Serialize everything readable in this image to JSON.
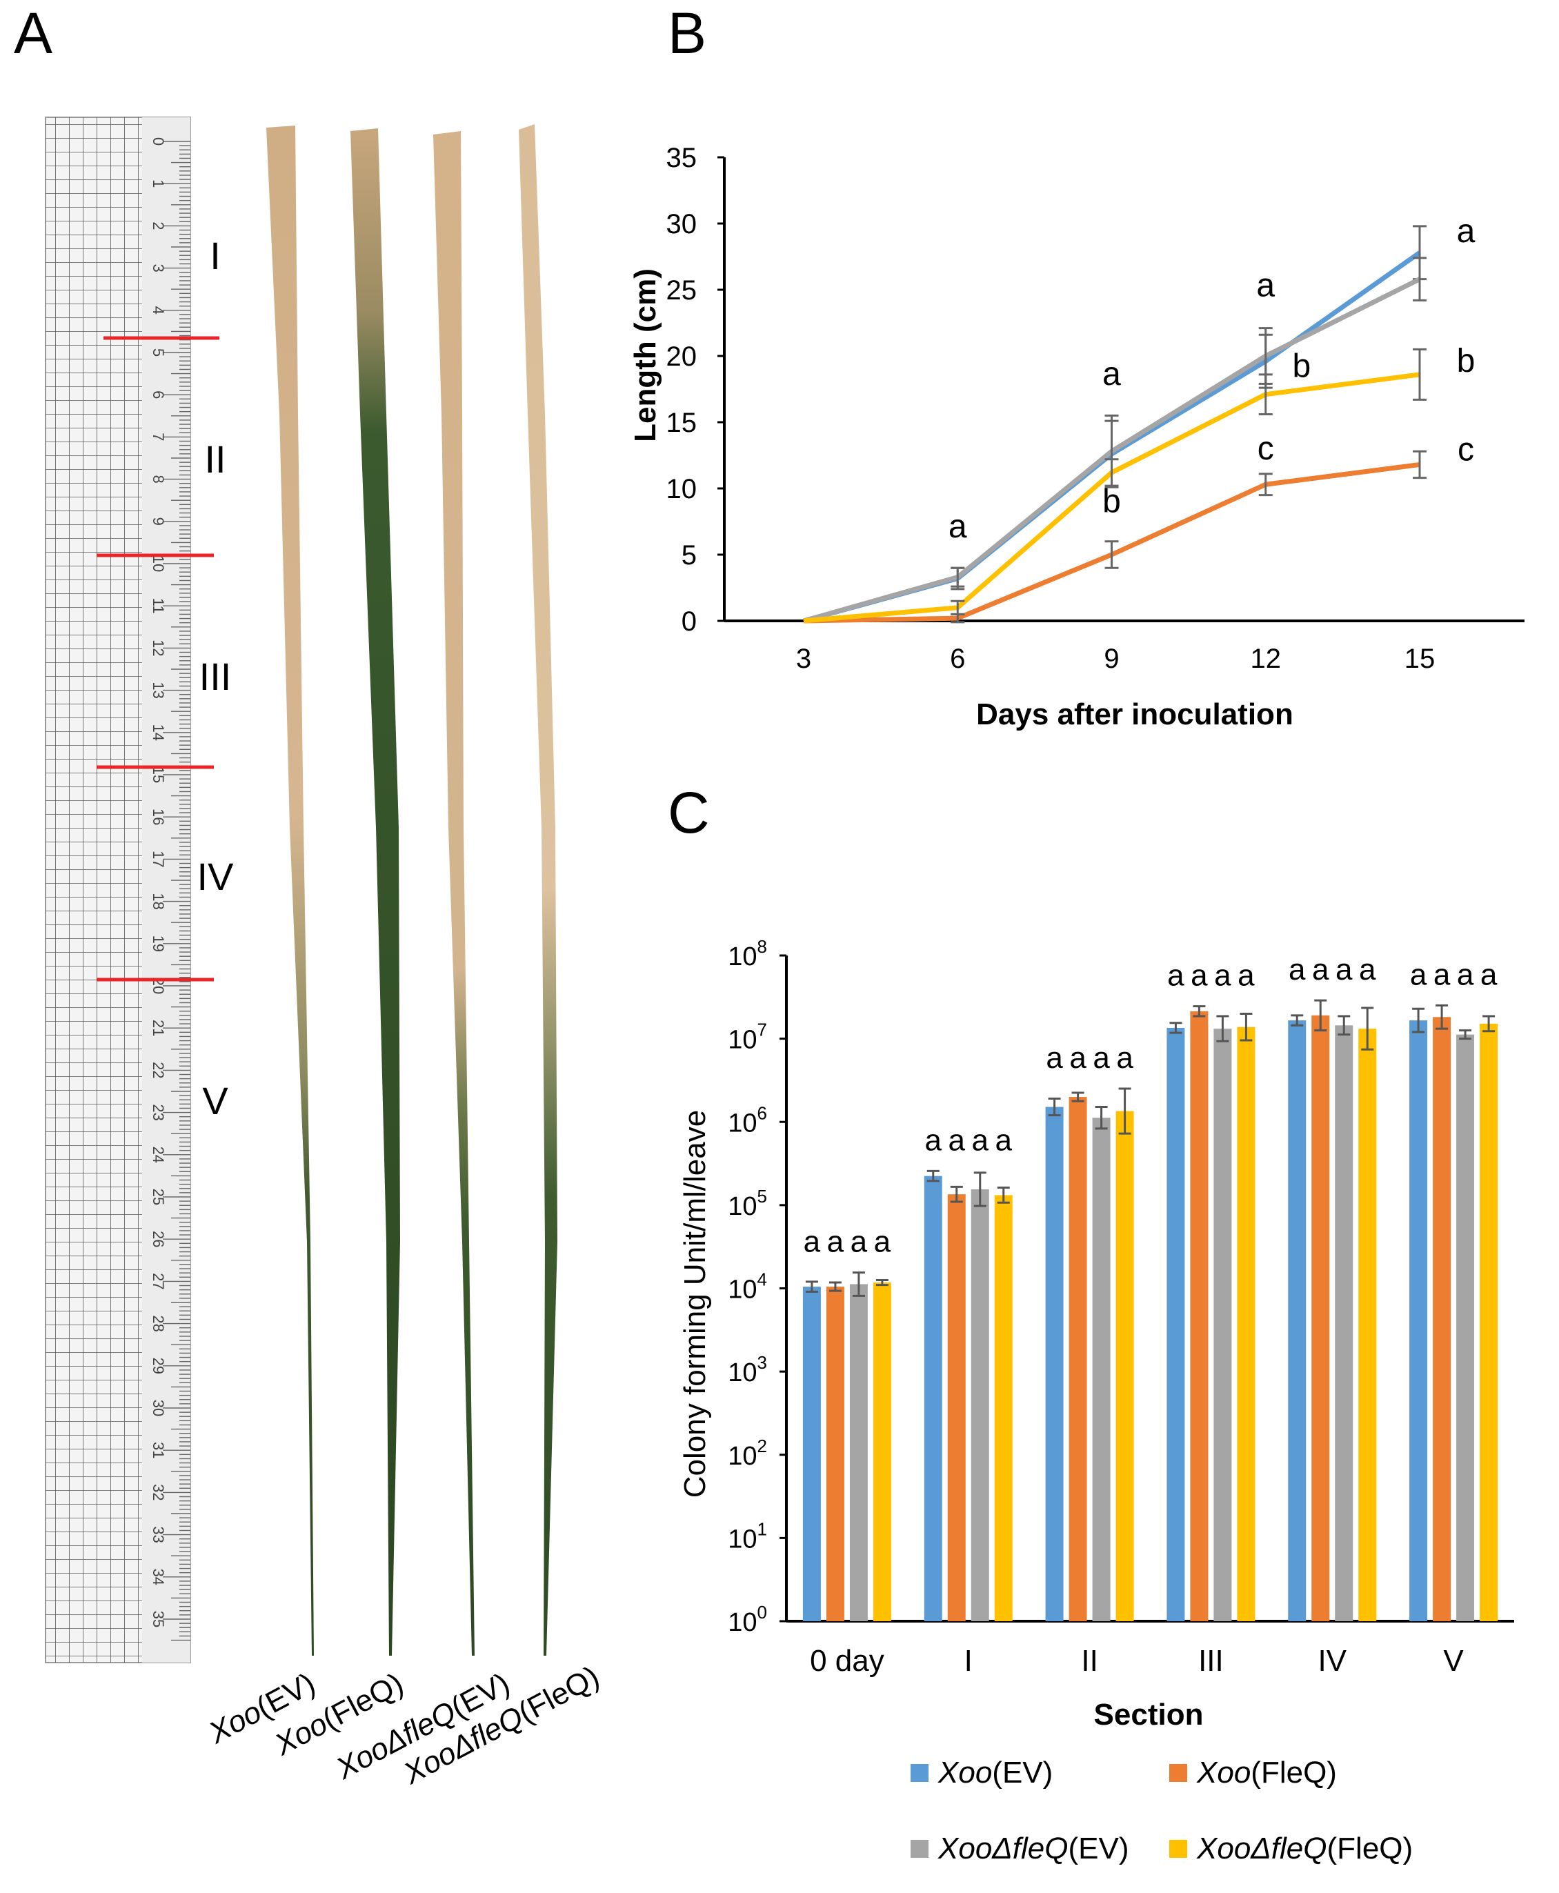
{
  "panels": {
    "a": "A",
    "b": "B",
    "c": "C"
  },
  "photo": {
    "section_labels": [
      "I",
      "II",
      "III",
      "IV",
      "V"
    ],
    "ruler_numbers": [
      "0",
      "1",
      "2",
      "3",
      "4",
      "5",
      "6",
      "7",
      "8",
      "9",
      "10",
      "11",
      "12",
      "13",
      "14",
      "15",
      "16",
      "17",
      "18",
      "19",
      "20",
      "21",
      "22",
      "23",
      "24",
      "25",
      "26",
      "27",
      "28",
      "29",
      "30",
      "31",
      "32",
      "33",
      "34",
      "35"
    ],
    "leaf_labels": [
      {
        "italic": "Xoo",
        "plain": "(EV)"
      },
      {
        "italic": "Xoo",
        "plain": "(FleQ)"
      },
      {
        "italic": "XooΔfleQ",
        "plain": "(EV)"
      },
      {
        "italic": "XooΔfleQ",
        "plain": "(FleQ)"
      }
    ]
  },
  "colors": {
    "blue": "#5B9BD5",
    "orange": "#ED7D31",
    "gray": "#A5A5A5",
    "yellow": "#FFC000",
    "marker_red": "#E8262A"
  },
  "chart_data": [
    {
      "type": "line",
      "xlabel": "Days after inoculation",
      "ylabel": "Length (cm)",
      "x": [
        3,
        6,
        9,
        12,
        15
      ],
      "ylim": [
        0,
        35
      ],
      "yticks": [
        0,
        5,
        10,
        15,
        20,
        25,
        30,
        35
      ],
      "series": [
        {
          "name": "Xoo(EV)",
          "color": "#5B9BD5",
          "values": [
            0,
            3.2,
            12.6,
            19.6,
            27.8
          ],
          "errors": [
            0,
            0.8,
            2.5,
            2.0,
            2.0
          ]
        },
        {
          "name": "Xoo(FleQ)",
          "color": "#ED7D31",
          "values": [
            0,
            0.2,
            5.0,
            10.3,
            11.8
          ],
          "errors": [
            0,
            0.3,
            1.0,
            0.8,
            1.0
          ]
        },
        {
          "name": "XooΔfleQ(EV)",
          "color": "#A5A5A5",
          "values": [
            0,
            3.3,
            12.8,
            20.0,
            25.8
          ],
          "errors": [
            0,
            0.7,
            2.7,
            2.1,
            1.6
          ]
        },
        {
          "name": "XooΔfleQ(FleQ)",
          "color": "#FFC000",
          "values": [
            0,
            1.0,
            11.2,
            17.1,
            18.6
          ],
          "errors": [
            0,
            0.5,
            1.0,
            1.5,
            1.9
          ]
        }
      ],
      "annotations": [
        {
          "x": 6,
          "y": 6.3,
          "text": "a"
        },
        {
          "x": 9,
          "y": 17.8,
          "text": "a"
        },
        {
          "x": 9,
          "y": 8.2,
          "text": "b"
        },
        {
          "x": 12,
          "y": 24.5,
          "text": "a"
        },
        {
          "x": 12,
          "y": 18.4,
          "text": "b",
          "dx": 0.7
        },
        {
          "x": 12,
          "y": 12.2,
          "text": "c"
        },
        {
          "x": 15,
          "y": 28.6,
          "text": "a",
          "dx": 0.9
        },
        {
          "x": 15,
          "y": 18.8,
          "text": "b",
          "dx": 0.9
        },
        {
          "x": 15,
          "y": 12.1,
          "text": "c",
          "dx": 0.9
        }
      ]
    },
    {
      "type": "bar",
      "xlabel": "Section",
      "ylabel": "Colony forming Unit/ml/leave",
      "yscale": "log10",
      "ylim_exp": [
        0,
        8
      ],
      "ytick_base": "10",
      "ytick_exps": [
        "0",
        "1",
        "2",
        "3",
        "4",
        "5",
        "6",
        "7",
        "8"
      ],
      "categories": [
        "0 day",
        "I",
        "II",
        "III",
        "IV",
        "V"
      ],
      "series": [
        {
          "name": "Xoo(EV)",
          "color": "#5B9BD5",
          "values_log10": [
            4.02,
            5.35,
            6.18,
            7.13,
            7.22,
            7.22
          ],
          "errors_log10": [
            0.06,
            0.06,
            0.1,
            0.06,
            0.06,
            0.14
          ]
        },
        {
          "name": "Xoo(FleQ)",
          "color": "#ED7D31",
          "values_log10": [
            4.02,
            5.13,
            6.3,
            7.33,
            7.28,
            7.26
          ],
          "errors_log10": [
            0.05,
            0.09,
            0.05,
            0.06,
            0.18,
            0.14
          ]
        },
        {
          "name": "XooΔfleQ(EV)",
          "color": "#A5A5A5",
          "values_log10": [
            4.05,
            5.19,
            6.05,
            7.12,
            7.16,
            7.05
          ],
          "errors_log10": [
            0.14,
            0.2,
            0.13,
            0.15,
            0.11,
            0.05
          ]
        },
        {
          "name": "XooΔfleQ(FleQ)",
          "color": "#FFC000",
          "values_log10": [
            4.07,
            5.12,
            6.13,
            7.14,
            7.12,
            7.18
          ],
          "errors_log10": [
            0.03,
            0.09,
            0.27,
            0.16,
            0.25,
            0.09
          ]
        }
      ],
      "group_labels": [
        "a",
        "a",
        "a",
        "a"
      ],
      "legend": [
        {
          "italic": "Xoo",
          "plain": "(EV)",
          "color": "#5B9BD5"
        },
        {
          "italic": "Xoo",
          "plain": "(FleQ)",
          "color": "#ED7D31"
        },
        {
          "italic": "XooΔfleQ",
          "plain": "(EV)",
          "color": "#A5A5A5"
        },
        {
          "italic": "XooΔfleQ",
          "plain": "(FleQ)",
          "color": "#FFC000"
        }
      ],
      "legend_position": "bottom"
    }
  ]
}
